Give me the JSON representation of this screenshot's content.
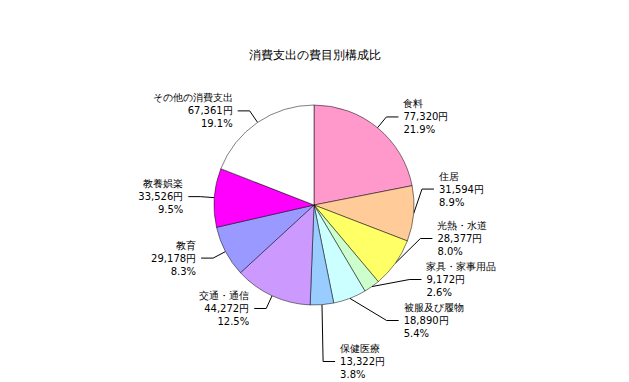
{
  "chart_data": {
    "type": "pie",
    "title": "消費支出の費目別構成比",
    "categories": [
      "食料",
      "住居",
      "光熱・水道",
      "家具・家事用品",
      "被服及び履物",
      "保健医療",
      "交通・通信",
      "教育",
      "教養娯楽",
      "その他の消費支出"
    ],
    "values": [
      77320,
      31594,
      28377,
      9172,
      18890,
      13322,
      44272,
      29178,
      33526,
      67361
    ],
    "value_labels": [
      "77,320円",
      "31,594円",
      "28,377円",
      "9,172円",
      "18,890円",
      "13,322円",
      "44,272円",
      "29,178円",
      "33,526円",
      "67,361円"
    ],
    "percent_labels": [
      "21.9%",
      "8.9%",
      "8.0%",
      "2.6%",
      "5.4%",
      "3.8%",
      "12.5%",
      "8.3%",
      "9.5%",
      "19.1%"
    ],
    "colors": [
      "#ff99cc",
      "#ffcc99",
      "#ffff66",
      "#ccffcc",
      "#ccffff",
      "#99ccff",
      "#cc99ff",
      "#9999ff",
      "#ff00ff",
      "#ffffff"
    ],
    "data_labels": true
  }
}
